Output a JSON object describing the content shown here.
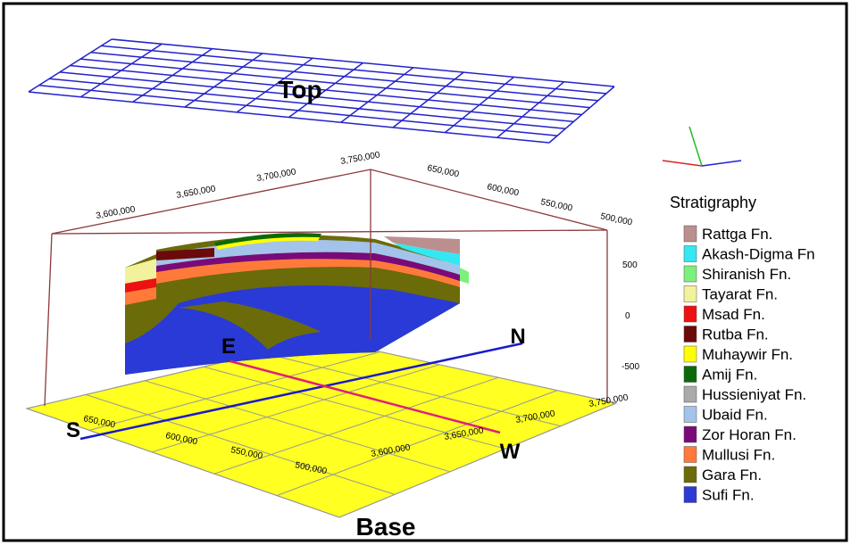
{
  "top_label": "Top",
  "base_label": "Base",
  "upper_box": {
    "north_ticks": [
      "3,600,000",
      "3,650,000",
      "3,700,000",
      "3,750,000"
    ],
    "east_ticks": [
      "650,000",
      "600,000",
      "550,000",
      "500,000"
    ],
    "depth_ticks": [
      "500",
      "0",
      "-500"
    ]
  },
  "base_plane": {
    "east_ticks": [
      "650,000",
      "600,000",
      "550,000",
      "500,000"
    ],
    "north_ticks": [
      "3,600,000",
      "3,650,000",
      "3,700,000",
      "3,750,000"
    ]
  },
  "compass": {
    "s": "S",
    "n": "N",
    "e": "E",
    "w": "W"
  },
  "legend": {
    "title": "Stratigraphy",
    "items": [
      {
        "name": "Rattga Fn.",
        "color": "#bc8f8f"
      },
      {
        "name": "Akash-Digma Fn",
        "color": "#33e8f2"
      },
      {
        "name": "Shiranish Fn.",
        "color": "#7cf07c"
      },
      {
        "name": "Tayarat Fn.",
        "color": "#f2f29c"
      },
      {
        "name": "Msad Fn.",
        "color": "#ee1111"
      },
      {
        "name": "Rutba Fn.",
        "color": "#6b0a0a"
      },
      {
        "name": "Muhaywir Fn.",
        "color": "#ffff00"
      },
      {
        "name": "Amij Fn.",
        "color": "#0a6a0a"
      },
      {
        "name": "Hussieniyat Fn.",
        "color": "#aaaaaa"
      },
      {
        "name": "Ubaid Fn.",
        "color": "#a3c3ea"
      },
      {
        "name": "Zor Horan Fn.",
        "color": "#7a0a7a"
      },
      {
        "name": "Mullusi Fn.",
        "color": "#ff7a3a"
      },
      {
        "name": "Gara Fn.",
        "color": "#6b6b0a"
      },
      {
        "name": "Sufi Fn.",
        "color": "#2a3ad6"
      }
    ]
  }
}
